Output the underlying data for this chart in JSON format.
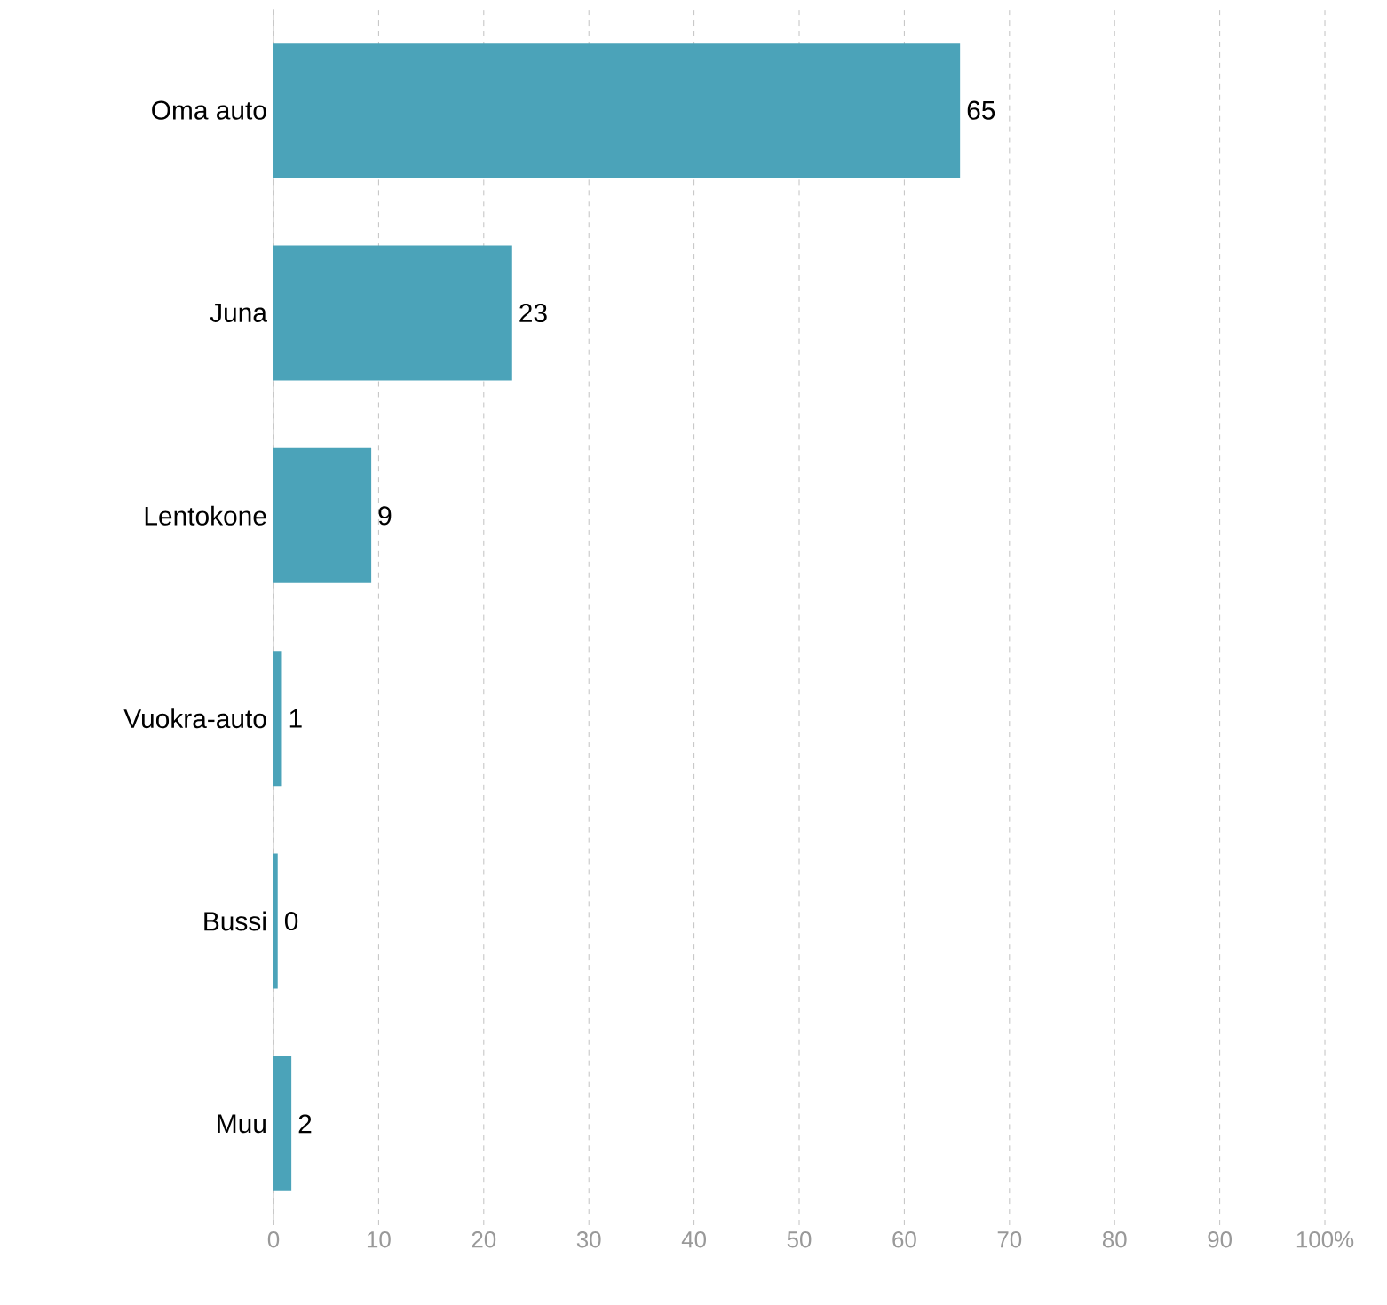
{
  "chart_data": {
    "type": "bar",
    "orientation": "horizontal",
    "categories": [
      "Oma auto",
      "Juna",
      "Lentokone",
      "Vuokra-auto",
      "Bussi",
      "Muu"
    ],
    "values": [
      65.3,
      22.7,
      9.3,
      0.8,
      0.4,
      1.7
    ],
    "value_labels": [
      "65",
      "23",
      "9",
      "1",
      "0",
      "2"
    ],
    "color": "#4ba3b9",
    "xlim": [
      0,
      100
    ],
    "xticks": [
      0,
      10,
      20,
      30,
      40,
      50,
      60,
      70,
      80,
      90,
      {
        "value": 100,
        "label": "100%"
      }
    ],
    "grid": "x"
  }
}
